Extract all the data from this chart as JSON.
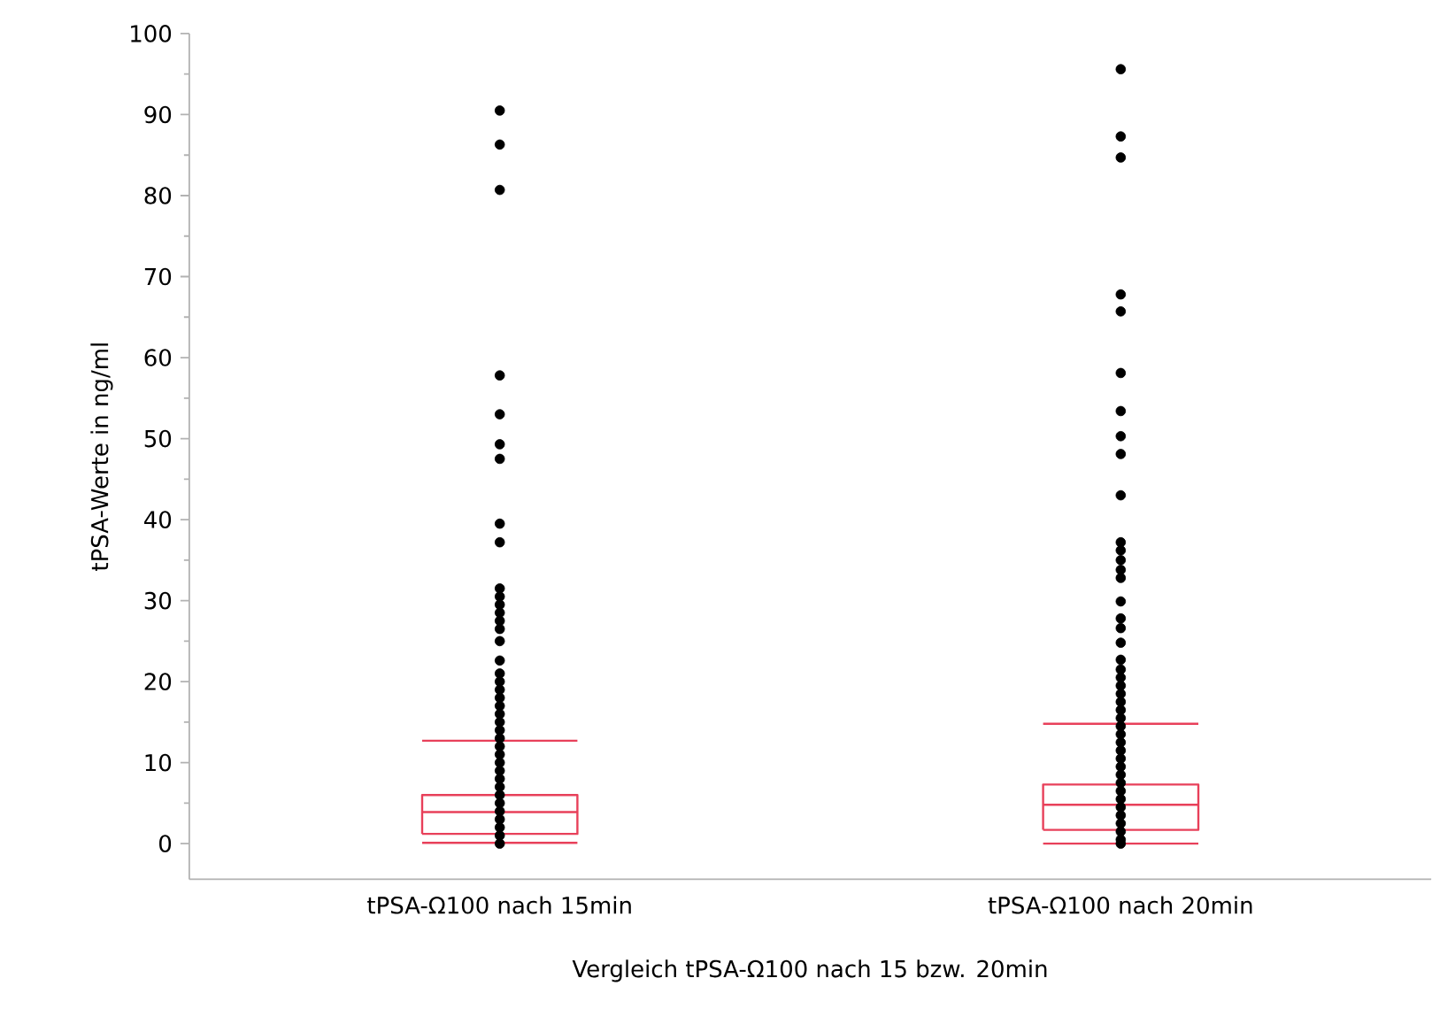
{
  "chart_data": {
    "type": "box",
    "xlabel": "Vergleich tPSA-Ω100 nach 15 bzw. 20min",
    "ylabel": "tPSA-Werte in ng/ml",
    "categories": [
      "tPSA-Ω100 nach 15min",
      "tPSA-Ω100 nach 20min"
    ],
    "marker": "circle",
    "ylim": [
      -4.4,
      100
    ],
    "yticks": [
      0,
      10,
      20,
      30,
      40,
      50,
      60,
      70,
      80,
      90,
      100
    ],
    "series": [
      {
        "type": "scatter",
        "color": "#000000",
        "x": [
          "tPSA-Ω100 nach 15min",
          "tPSA-Ω100 nach 15min",
          "tPSA-Ω100 nach 15min",
          "tPSA-Ω100 nach 15min",
          "tPSA-Ω100 nach 15min",
          "tPSA-Ω100 nach 15min",
          "tPSA-Ω100 nach 15min",
          "tPSA-Ω100 nach 15min",
          "tPSA-Ω100 nach 15min",
          "tPSA-Ω100 nach 15min",
          "tPSA-Ω100 nach 15min",
          "tPSA-Ω100 nach 15min",
          "tPSA-Ω100 nach 15min",
          "tPSA-Ω100 nach 15min",
          "tPSA-Ω100 nach 15min",
          "tPSA-Ω100 nach 15min",
          "tPSA-Ω100 nach 15min",
          "tPSA-Ω100 nach 15min",
          "tPSA-Ω100 nach 15min",
          "tPSA-Ω100 nach 15min",
          "tPSA-Ω100 nach 15min",
          "tPSA-Ω100 nach 15min",
          "tPSA-Ω100 nach 15min",
          "tPSA-Ω100 nach 15min",
          "tPSA-Ω100 nach 15min",
          "tPSA-Ω100 nach 15min",
          "tPSA-Ω100 nach 15min",
          "tPSA-Ω100 nach 15min",
          "tPSA-Ω100 nach 15min",
          "tPSA-Ω100 nach 15min",
          "tPSA-Ω100 nach 15min",
          "tPSA-Ω100 nach 15min",
          "tPSA-Ω100 nach 15min",
          "tPSA-Ω100 nach 15min",
          "tPSA-Ω100 nach 15min",
          "tPSA-Ω100 nach 15min",
          "tPSA-Ω100 nach 15min",
          "tPSA-Ω100 nach 15min",
          "tPSA-Ω100 nach 15min",
          "tPSA-Ω100 nach 20min",
          "tPSA-Ω100 nach 20min",
          "tPSA-Ω100 nach 20min",
          "tPSA-Ω100 nach 20min",
          "tPSA-Ω100 nach 20min",
          "tPSA-Ω100 nach 20min",
          "tPSA-Ω100 nach 20min",
          "tPSA-Ω100 nach 20min",
          "tPSA-Ω100 nach 20min",
          "tPSA-Ω100 nach 20min",
          "tPSA-Ω100 nach 20min",
          "tPSA-Ω100 nach 20min",
          "tPSA-Ω100 nach 20min",
          "tPSA-Ω100 nach 20min",
          "tPSA-Ω100 nach 20min",
          "tPSA-Ω100 nach 20min",
          "tPSA-Ω100 nach 20min",
          "tPSA-Ω100 nach 20min",
          "tPSA-Ω100 nach 20min",
          "tPSA-Ω100 nach 20min",
          "tPSA-Ω100 nach 20min",
          "tPSA-Ω100 nach 20min",
          "tPSA-Ω100 nach 20min",
          "tPSA-Ω100 nach 20min",
          "tPSA-Ω100 nach 20min",
          "tPSA-Ω100 nach 20min",
          "tPSA-Ω100 nach 20min",
          "tPSA-Ω100 nach 20min",
          "tPSA-Ω100 nach 20min",
          "tPSA-Ω100 nach 20min",
          "tPSA-Ω100 nach 20min",
          "tPSA-Ω100 nach 20min",
          "tPSA-Ω100 nach 20min",
          "tPSA-Ω100 nach 20min",
          "tPSA-Ω100 nach 20min",
          "tPSA-Ω100 nach 20min",
          "tPSA-Ω100 nach 20min",
          "tPSA-Ω100 nach 20min",
          "tPSA-Ω100 nach 20min",
          "tPSA-Ω100 nach 20min",
          "tPSA-Ω100 nach 20min",
          "tPSA-Ω100 nach 20min",
          "tPSA-Ω100 nach 20min"
        ],
        "values": [
          90.5,
          86.3,
          80.7,
          57.8,
          53.0,
          49.3,
          47.5,
          39.5,
          37.2,
          31.5,
          30.5,
          29.5,
          28.5,
          27.5,
          26.5,
          25,
          22.6,
          21,
          20,
          19,
          18,
          17,
          16,
          15,
          14,
          13,
          12,
          11,
          10,
          9,
          8,
          7,
          6,
          5,
          4,
          3,
          2,
          1,
          0,
          95.6,
          87.3,
          84.7,
          67.8,
          65.7,
          58.1,
          53.4,
          50.3,
          48.1,
          43.0,
          37.2,
          36.2,
          35,
          33.8,
          32.8,
          29.9,
          27.8,
          26.6,
          24.8,
          22.7,
          21.5,
          20.5,
          19.5,
          18.5,
          17.5,
          16.5,
          15.5,
          14.5,
          13.5,
          12.5,
          11.5,
          10.5,
          9.5,
          8.5,
          7.5,
          6.5,
          5.5,
          4.5,
          3.5,
          2.5,
          1.5,
          0.5,
          0
        ]
      },
      {
        "color": "#e8405a",
        "boxes": [
          {
            "low": 0.1,
            "q1": 1.2,
            "median": 3.9,
            "q3": 6.0,
            "high": 12.7
          },
          {
            "low": 0,
            "q1": 1.7,
            "median": 4.8,
            "q3": 7.3,
            "high": 14.8
          }
        ]
      }
    ]
  }
}
